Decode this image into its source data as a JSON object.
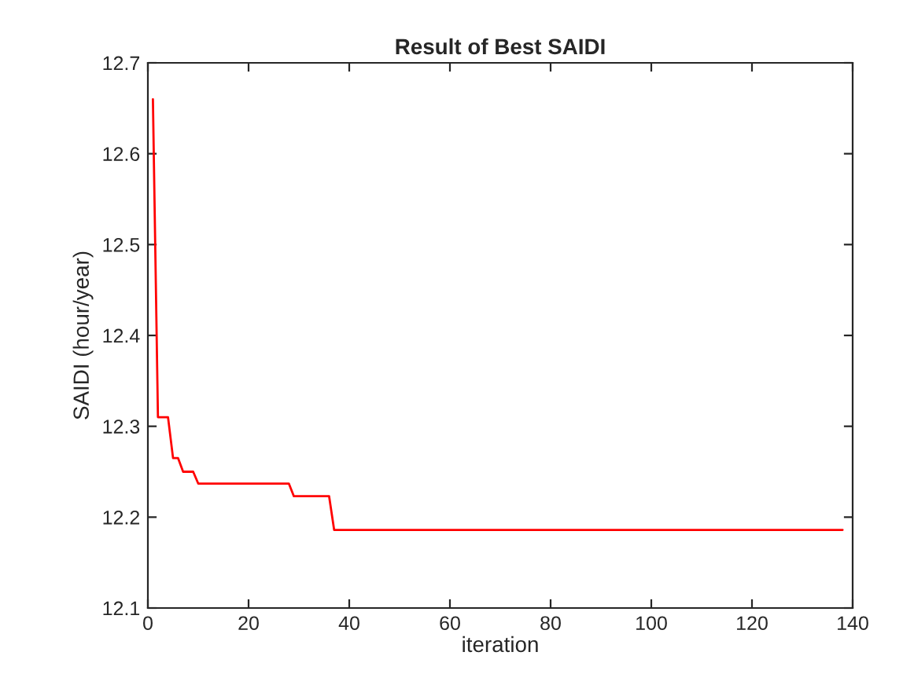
{
  "chart_data": {
    "type": "line",
    "title": "Result of Best SAIDI",
    "xlabel": "iteration",
    "ylabel": "SAIDI (hour/year)",
    "series": [
      {
        "color": "#ff0000",
        "x": [
          1,
          2,
          4,
          5,
          6,
          7,
          9,
          10,
          28,
          29,
          36,
          37,
          138
        ],
        "values": [
          12.66,
          12.31,
          12.31,
          12.265,
          12.265,
          12.25,
          12.25,
          12.237,
          12.237,
          12.223,
          12.223,
          12.186,
          12.186
        ]
      }
    ],
    "xlim": [
      0,
      140
    ],
    "xticks": [
      0,
      20,
      40,
      60,
      80,
      100,
      120,
      140
    ],
    "ylim": [
      12.1,
      12.7
    ],
    "yticks": [
      12.1,
      12.2,
      12.3,
      12.4,
      12.5,
      12.6,
      12.7
    ],
    "grid": false,
    "legend": false
  }
}
